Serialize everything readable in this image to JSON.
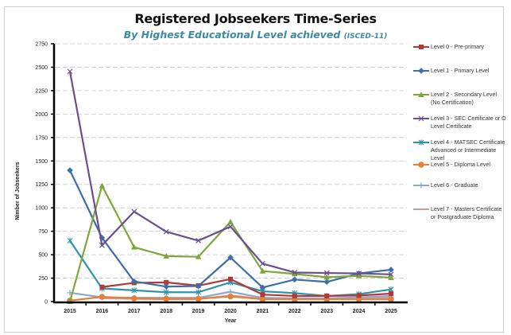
{
  "chart_data": {
    "type": "line",
    "title": "Registered Jobseekers Time-Series",
    "subtitle": "By Highest Educational Level achieved",
    "subtitle_suffix": "(ISCED-11)",
    "xlabel": "Year",
    "ylabel": "Nimber of Jobseekers",
    "ylim": [
      0,
      2750
    ],
    "y_ticks": [
      0,
      250,
      500,
      750,
      1000,
      1250,
      1500,
      1750,
      2000,
      2250,
      2500,
      2750
    ],
    "grid": true,
    "legend_position": "right",
    "categories": [
      "2015",
      "2016",
      "2017",
      "2018",
      "2019",
      "2020",
      "2021",
      "2022",
      "2023",
      "2024",
      "2025"
    ],
    "series": [
      {
        "name": "Level 0 - Pre-primary",
        "color": "#b03a3a",
        "marker": "square",
        "values": [
          null,
          155,
          200,
          205,
          170,
          240,
          75,
          60,
          60,
          65,
          85
        ]
      },
      {
        "name": "Level 1 - Primary Level",
        "color": "#3d6ea8",
        "marker": "diamond",
        "values": [
          1400,
          680,
          215,
          160,
          165,
          470,
          150,
          235,
          210,
          300,
          340
        ]
      },
      {
        "name": "Level 2 - Secondary Level (No Certification)",
        "color": "#7fa63a",
        "marker": "triangle",
        "values": [
          0,
          1235,
          580,
          485,
          478,
          850,
          325,
          295,
          260,
          275,
          255
        ]
      },
      {
        "name": "Level 3 - SEC Certificate or O Level Certificate",
        "color": "#6a4f91",
        "marker": "x",
        "values": [
          2455,
          600,
          960,
          745,
          650,
          800,
          405,
          310,
          305,
          300,
          290
        ]
      },
      {
        "name": "Level 4 - MATSEC Certificate Advanced or Intermediate Level",
        "color": "#2e94ab",
        "marker": "star",
        "values": [
          650,
          140,
          120,
          100,
          100,
          205,
          110,
          90,
          60,
          80,
          130
        ]
      },
      {
        "name": "Level 5 - Diploma Level",
        "color": "#e0823a",
        "marker": "circle",
        "values": [
          10,
          50,
          35,
          30,
          30,
          55,
          25,
          25,
          25,
          25,
          25
        ]
      },
      {
        "name": "Level 6 - Graduate",
        "color": "#8fa8d0",
        "marker": "plus",
        "values": [
          95,
          45,
          40,
          40,
          40,
          105,
          40,
          35,
          35,
          45,
          60
        ]
      },
      {
        "name": "Level 7 - Masters Certificate or Postgraduate Diploma",
        "color": "#d09a9a",
        "marker": "dash",
        "values": [
          null,
          35,
          30,
          25,
          25,
          65,
          30,
          25,
          25,
          35,
          45
        ]
      }
    ]
  }
}
